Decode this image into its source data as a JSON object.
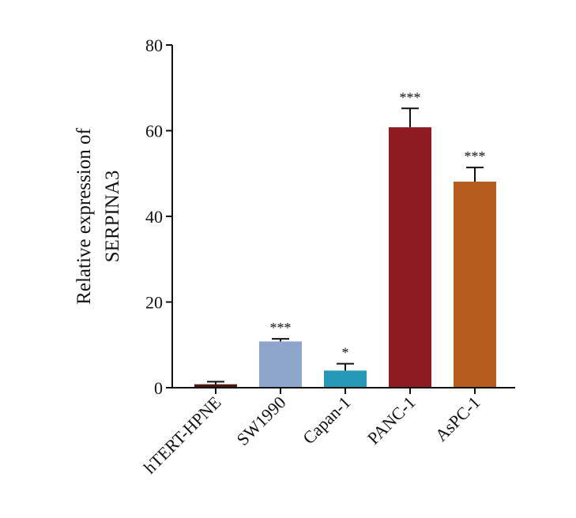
{
  "chart_data": {
    "type": "bar",
    "ylabel_lines": [
      "Relative expression of",
      "SERPINA3"
    ],
    "categories": [
      "hTERT-HPNE",
      "SW1990",
      "Capan-1",
      "PANC-1",
      "AsPC-1"
    ],
    "values": [
      0.8,
      10.8,
      4.0,
      60.8,
      48.1
    ],
    "errors": [
      0.6,
      0.6,
      1.6,
      4.4,
      3.3
    ],
    "significance": [
      "",
      "***",
      "*",
      "***",
      "***"
    ],
    "colors": [
      "#4a1810",
      "#8fa6cc",
      "#2599b5",
      "#8e1a22",
      "#b55b1d"
    ],
    "ylim": [
      0,
      80
    ],
    "yticks": [
      0,
      20,
      40,
      60,
      80
    ],
    "grid": false,
    "legend": "none"
  }
}
